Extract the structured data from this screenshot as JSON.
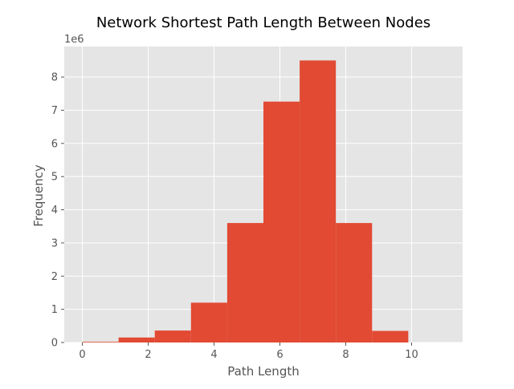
{
  "chart_data": {
    "type": "histogram",
    "title": "Network Shortest Path Length Between Nodes",
    "xlabel": "Path Length",
    "ylabel": "Frequency",
    "y_offset_label": "1e6",
    "y_multiplier": 1000000,
    "xlim": [
      -0.55,
      11.55
    ],
    "ylim": [
      0,
      8.92
    ],
    "x_ticks": [
      0,
      2,
      4,
      6,
      8,
      10
    ],
    "y_ticks": [
      0,
      1,
      2,
      3,
      4,
      5,
      6,
      7,
      8
    ],
    "bins": [
      {
        "x0": 0.0,
        "x1": 1.1,
        "value": 0.02
      },
      {
        "x0": 1.1,
        "x1": 2.2,
        "value": 0.15
      },
      {
        "x0": 2.2,
        "x1": 3.3,
        "value": 0.36
      },
      {
        "x0": 3.3,
        "x1": 4.4,
        "value": 1.2
      },
      {
        "x0": 4.4,
        "x1": 5.5,
        "value": 3.6
      },
      {
        "x0": 5.5,
        "x1": 6.6,
        "value": 7.26
      },
      {
        "x0": 6.6,
        "x1": 7.7,
        "value": 8.5
      },
      {
        "x0": 7.7,
        "x1": 8.8,
        "value": 3.6
      },
      {
        "x0": 8.8,
        "x1": 9.9,
        "value": 0.35
      },
      {
        "x0": 9.9,
        "x1": 11.0,
        "value": 0.0
      }
    ],
    "grid": true,
    "colors": {
      "bar": "#E24A33",
      "plot_background": "#E5E5E5",
      "grid": "#FFFFFF",
      "tick": "#555555"
    }
  }
}
